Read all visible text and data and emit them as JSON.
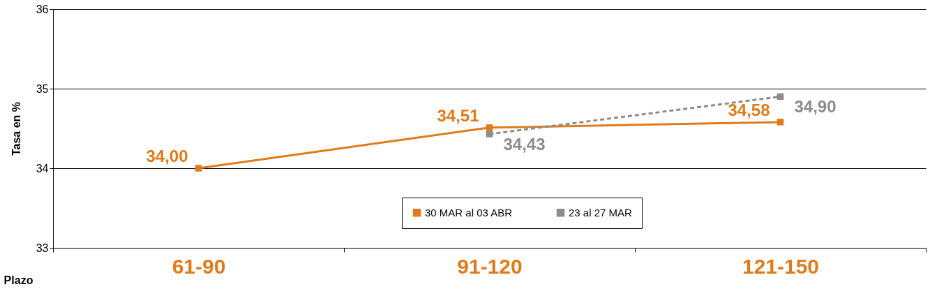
{
  "chart_data": {
    "type": "line",
    "xlabel": "Plazo",
    "ylabel": "Tasa en %",
    "categories": [
      "61-90",
      "91-120",
      "121-150"
    ],
    "series": [
      {
        "name": "30 MAR al 03 ABR",
        "color": "#e07b1a",
        "line_style": "solid",
        "values": [
          34.0,
          34.51,
          34.58
        ],
        "value_labels": [
          "34,00",
          "34,51",
          "34,58"
        ]
      },
      {
        "name": "23 al 27 MAR",
        "color": "#8c8c8c",
        "line_style": "dashed",
        "values": [
          null,
          34.43,
          34.9
        ],
        "value_labels": [
          null,
          "34,43",
          "34,90"
        ]
      }
    ],
    "ylim": [
      33,
      36
    ],
    "yticks": [
      33,
      34,
      35,
      36
    ],
    "grid": "y",
    "marker": "square",
    "legend": "bottom right"
  }
}
